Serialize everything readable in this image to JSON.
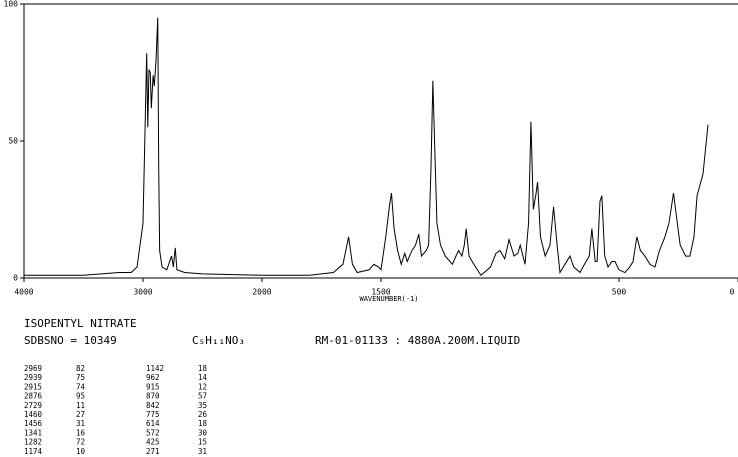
{
  "chart_data": {
    "type": "line",
    "color": "#000000",
    "xlabel": "WAVENUMBER(-1)",
    "xlim": [
      4000,
      0
    ],
    "x_scale_break": 2000,
    "xticks": [
      4000,
      3000,
      2000,
      1500,
      500,
      0
    ],
    "ylim": [
      0,
      100
    ],
    "yticks": [
      0,
      50,
      100
    ],
    "x": [
      4000,
      3500,
      3200,
      3100,
      3050,
      3000,
      2980,
      2969,
      2960,
      2950,
      2939,
      2930,
      2915,
      2905,
      2890,
      2876,
      2868,
      2860,
      2840,
      2800,
      2760,
      2745,
      2729,
      2715,
      2650,
      2500,
      2000,
      1800,
      1700,
      1660,
      1636,
      1620,
      1600,
      1550,
      1530,
      1510,
      1500,
      1480,
      1465,
      1456,
      1445,
      1430,
      1415,
      1400,
      1390,
      1370,
      1355,
      1341,
      1330,
      1310,
      1300,
      1290,
      1282,
      1275,
      1265,
      1250,
      1230,
      1200,
      1185,
      1174,
      1160,
      1150,
      1142,
      1130,
      1110,
      1080,
      1040,
      1017,
      1000,
      980,
      962,
      941,
      925,
      915,
      895,
      880,
      870,
      860,
      850,
      842,
      830,
      810,
      790,
      775,
      760,
      748,
      720,
      706,
      690,
      664,
      645,
      625,
      614,
      600,
      592,
      580,
      572,
      560,
      546,
      530,
      517,
      500,
      475,
      455,
      441,
      425,
      410,
      391,
      370,
      349,
      330,
      307,
      290,
      271,
      255,
      243,
      220,
      202,
      185,
      172,
      147,
      126
    ],
    "values": [
      1,
      1,
      2,
      2,
      4,
      20,
      60,
      82,
      55,
      76,
      75,
      62,
      74,
      70,
      80,
      95,
      40,
      10,
      4,
      3,
      8,
      4,
      11,
      3,
      2,
      1.5,
      1,
      1,
      2,
      5,
      15,
      5,
      2,
      3,
      5,
      4,
      3,
      15,
      26,
      31,
      18,
      10,
      5,
      9,
      6,
      10,
      12,
      16,
      8,
      10,
      12,
      40,
      72,
      50,
      20,
      12,
      8,
      5,
      8,
      10,
      8,
      12,
      18,
      8,
      5,
      1,
      4,
      9,
      10,
      7,
      14,
      8,
      9,
      12,
      5,
      20,
      57,
      25,
      30,
      35,
      15,
      8,
      12,
      26,
      12,
      2,
      6,
      8,
      4,
      2,
      5,
      8,
      18,
      6,
      6,
      28,
      30,
      8,
      4,
      6,
      6,
      3,
      2,
      4,
      6,
      15,
      10,
      8,
      5,
      4,
      10,
      15,
      20,
      31,
      20,
      12,
      8,
      8,
      15,
      30,
      38,
      56
    ]
  },
  "header": {
    "name": "ISOPENTYL NITRATE",
    "sdbs": "SDBSNO = 10349",
    "formula": "C₅H₁₁NO₃",
    "conditions": "RM-01-01133 : 4880A.200M.LIQUID"
  },
  "peak_table": [
    [
      2969,
      82
    ],
    [
      2939,
      75
    ],
    [
      2915,
      74
    ],
    [
      2876,
      95
    ],
    [
      2729,
      11
    ],
    [
      1460,
      27
    ],
    [
      1456,
      31
    ],
    [
      1341,
      16
    ],
    [
      1282,
      72
    ],
    [
      1174,
      10
    ],
    [
      1142,
      18
    ],
    [
      962,
      14
    ],
    [
      915,
      12
    ],
    [
      870,
      57
    ],
    [
      842,
      35
    ],
    [
      775,
      26
    ],
    [
      614,
      18
    ],
    [
      572,
      30
    ],
    [
      425,
      15
    ],
    [
      271,
      31
    ]
  ]
}
